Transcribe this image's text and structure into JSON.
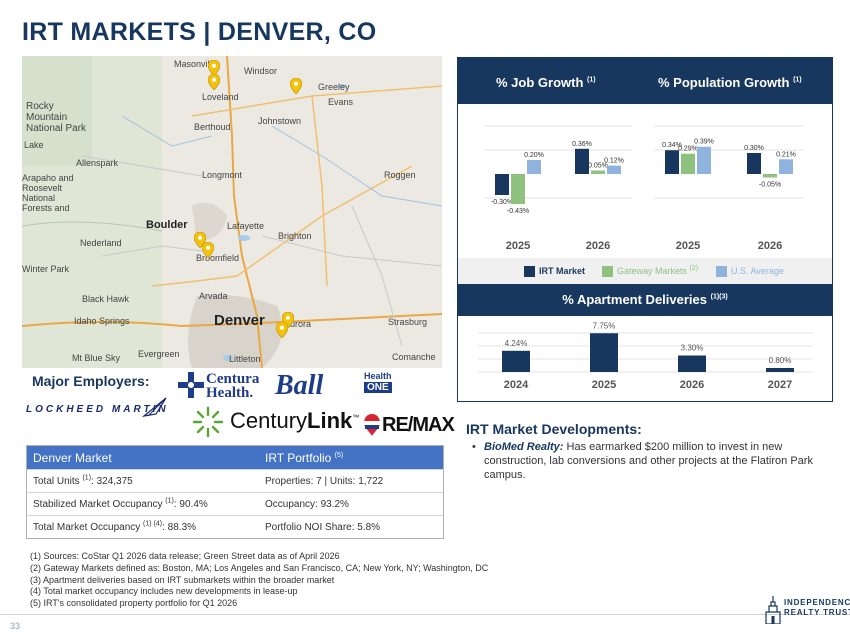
{
  "title": "IRT MARKETS | DENVER, CO",
  "map": {
    "places": [
      "Masonville",
      "Windsor",
      "Loveland",
      "Greeley",
      "Evans",
      "Rocky Mountain National Park",
      "Berthoud",
      "Johnstown",
      "Lake",
      "Allenspark",
      "Longmont",
      "Roggen",
      "Arapaho and Roosevelt National Forests and",
      "Boulder",
      "Lafayette",
      "Brighton",
      "Nederland",
      "Broomfield",
      "Winter Park",
      "Black Hawk",
      "Arvada",
      "Idaho Springs",
      "Denver",
      "Aurora",
      "Strasburg",
      "Mt Blue Sky",
      "Evergreen",
      "Littleton",
      "Comanche"
    ],
    "highways": [
      "34",
      "34",
      "287",
      "34",
      "25",
      "66",
      "7",
      "119",
      "72",
      "36",
      "52",
      "76",
      "76",
      "79",
      "40",
      "70",
      "70",
      "70",
      "103",
      "285",
      "225",
      "470",
      "85",
      "25",
      "36"
    ],
    "pin_color": "#f4c20d"
  },
  "employers": {
    "label": "Major Employers:",
    "lockheed": "LOCKHEED MARTIN",
    "centura_line1": "Centura",
    "centura_line2": "Health.",
    "ball": "Ball",
    "healthone_top": "Health",
    "healthone_bottom": "ONE",
    "centurylink_a": "Century",
    "centurylink_b": "Link",
    "centurylink_tm": "™",
    "remax": "RE/MAX"
  },
  "table": {
    "head_left": "Denver Market",
    "head_right": "IRT Portfolio",
    "head_right_sup": "(5)",
    "rows": [
      {
        "left": "Total Units",
        "left_sup": "(1)",
        "left_val": ": 324,375",
        "right": "Properties: 7 | Units: 1,722"
      },
      {
        "left": "Stabilized Market Occupancy",
        "left_sup": "(1)",
        "left_val": ": 90.4%",
        "right": "Occupancy: 93.2%"
      },
      {
        "left": "Total Market Occupancy",
        "left_sup": "(1) (4)",
        "left_val": ": 88.3%",
        "right": "Portfolio NOI Share: 5.8%"
      }
    ]
  },
  "footnotes": [
    "(1) Sources: CoStar Q1 2026 data release; Green Street data as of April 2026",
    "(2) Gateway Markets defined as: Boston, MA; Los Angeles and San Francisco, CA; New York, NY; Washington, DC",
    "(3) Apartment deliveries based on IRT submarkets within the broader market",
    "(4) Total market occupancy includes new developments in lease-up",
    "(5) IRT's consolidated property portfolio for Q1 2026"
  ],
  "page_number": "33",
  "irt_logo": {
    "line1": "INDEPENDENCE",
    "line2": "REALTY TRUST"
  },
  "panel": {
    "job_growth_title": "% Job Growth",
    "job_growth_sup": "(1)",
    "pop_growth_title": "% Population Growth",
    "pop_growth_sup": "(1)",
    "deliveries_title": "% Apartment Deliveries",
    "deliveries_sup": "(1)(3)",
    "legend": [
      {
        "label": "IRT Market",
        "color": "#17375e"
      },
      {
        "label": "Gateway Markets",
        "sup": "(2)",
        "color": "#8fc27f"
      },
      {
        "label": "U.S. Average",
        "color": "#8fb3dc"
      }
    ]
  },
  "colors": {
    "navy": "#17375e",
    "green": "#8fc27f",
    "lightblue": "#8fb3dc"
  },
  "chart_data": [
    {
      "type": "bar",
      "title": "% Job Growth",
      "categories": [
        "2025",
        "2026"
      ],
      "series": [
        {
          "name": "IRT Market",
          "values": [
            -0.3,
            0.36
          ],
          "labels": [
            "-0.30%",
            "0.36%"
          ]
        },
        {
          "name": "Gateway Markets",
          "values": [
            -0.43,
            0.05
          ],
          "labels": [
            "-0.43%",
            "0.05%"
          ]
        },
        {
          "name": "U.S. Average",
          "values": [
            0.2,
            0.12
          ],
          "labels": [
            "0.20%",
            "0.12%"
          ]
        }
      ]
    },
    {
      "type": "bar",
      "title": "% Population Growth",
      "categories": [
        "2025",
        "2026"
      ],
      "series": [
        {
          "name": "IRT Market",
          "values": [
            0.34,
            0.3
          ],
          "labels": [
            "0.34%",
            "0.30%"
          ]
        },
        {
          "name": "Gateway Markets",
          "values": [
            0.29,
            -0.05
          ],
          "labels": [
            "0.29%",
            "-0.05%"
          ]
        },
        {
          "name": "U.S. Average",
          "values": [
            0.39,
            0.21
          ],
          "labels": [
            "0.39%",
            "0.21%"
          ]
        }
      ]
    },
    {
      "type": "bar",
      "title": "% Apartment Deliveries",
      "categories": [
        "2024",
        "2025",
        "2026",
        "2027"
      ],
      "values": [
        4.24,
        7.75,
        3.3,
        0.8
      ],
      "labels": [
        "4.24%",
        "7.75%",
        "3.30%",
        "0.80%"
      ]
    }
  ],
  "developments": {
    "title": "IRT Market Developments:",
    "bullet": "•",
    "lead": "BioMed Realty:",
    "text": " Has earmarked $200 million to invest in new construction, lab conversions and other projects at the Flatiron Park campus."
  }
}
